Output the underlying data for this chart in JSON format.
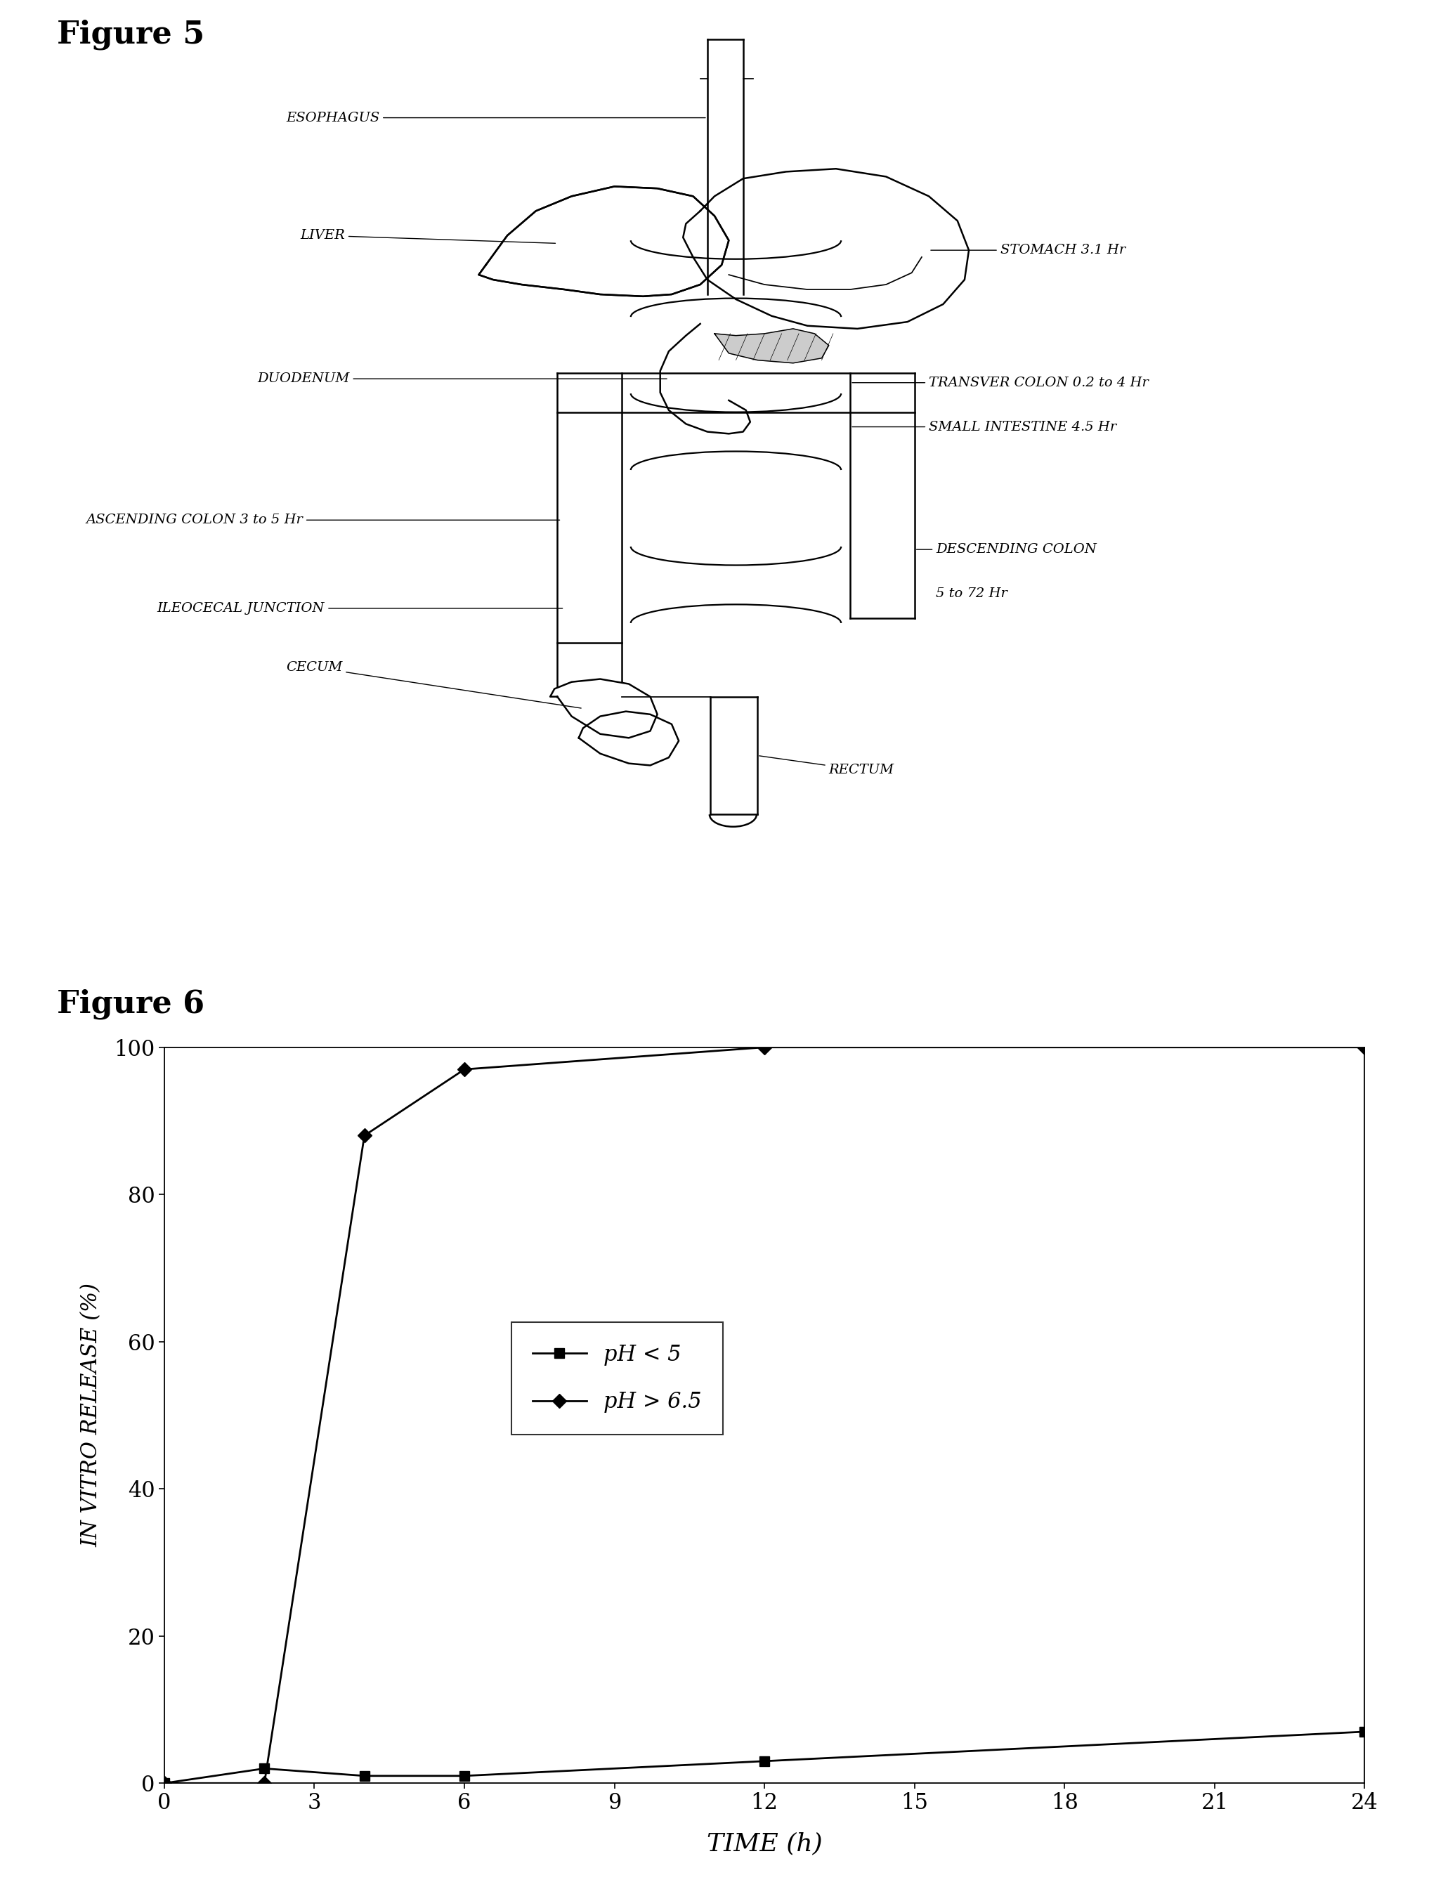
{
  "figure5_label": "Figure 5",
  "figure6_label": "Figure 6",
  "ph_low_x": [
    0,
    2,
    4,
    6,
    12,
    24
  ],
  "ph_low_y": [
    0,
    2,
    1,
    1,
    3,
    7
  ],
  "ph_high_x": [
    0,
    2,
    4,
    6,
    12,
    24
  ],
  "ph_high_y": [
    0,
    0,
    88,
    97,
    100,
    100
  ],
  "xlabel": "TIME (h)",
  "ylabel": "IN VITRO RELEASE (%)",
  "xlim": [
    0,
    24
  ],
  "ylim": [
    0,
    100
  ],
  "xticks": [
    0,
    3,
    6,
    9,
    12,
    15,
    18,
    21,
    24
  ],
  "yticks": [
    0,
    20,
    40,
    60,
    80,
    100
  ],
  "legend_ph_low": "pH < 5",
  "legend_ph_high": "pH > 6.5",
  "bg_color": "#ffffff",
  "line_color": "#000000"
}
